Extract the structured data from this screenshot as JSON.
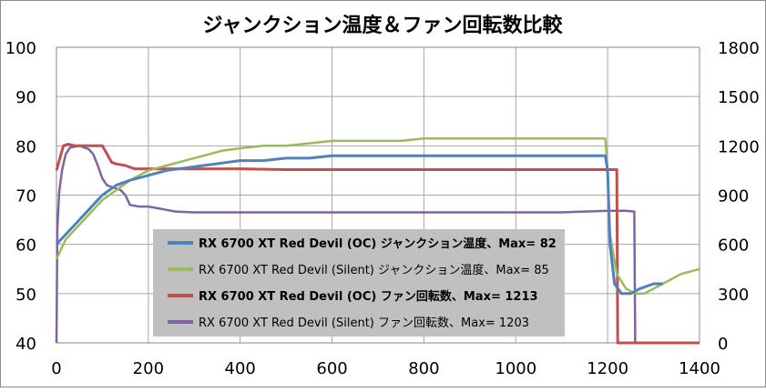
{
  "chart_data": {
    "type": "line",
    "title": "ジャンクション温度＆ファン回転数比較",
    "x_ticks": [
      "0",
      "200",
      "400",
      "600",
      "800",
      "1000",
      "1200",
      "1400"
    ],
    "y_left_ticks": [
      "40",
      "50",
      "60",
      "70",
      "80",
      "90",
      "100"
    ],
    "y_right_ticks": [
      "0",
      "300",
      "600",
      "900",
      "1200",
      "1500",
      "1800"
    ],
    "xlim": [
      0,
      1400
    ],
    "ylim_left": [
      40,
      100
    ],
    "ylim_right": [
      0,
      1800
    ],
    "grid": true,
    "legend_position": "lower-left (inside plot)",
    "series": [
      {
        "name": "RX 6700 XT Red Devil (OC) ジャンクション温度、Max= 82",
        "axis": "left",
        "color": "#4f81bd",
        "bold": true,
        "points": [
          [
            0,
            60
          ],
          [
            10,
            61
          ],
          [
            20,
            62
          ],
          [
            40,
            64
          ],
          [
            60,
            66
          ],
          [
            80,
            68
          ],
          [
            100,
            70
          ],
          [
            130,
            72
          ],
          [
            160,
            73
          ],
          [
            200,
            74
          ],
          [
            240,
            75
          ],
          [
            280,
            75.5
          ],
          [
            320,
            76
          ],
          [
            360,
            76.5
          ],
          [
            400,
            77
          ],
          [
            450,
            77
          ],
          [
            500,
            77.5
          ],
          [
            550,
            77.5
          ],
          [
            600,
            78
          ],
          [
            650,
            78
          ],
          [
            700,
            78
          ],
          [
            750,
            78
          ],
          [
            800,
            78
          ],
          [
            850,
            78
          ],
          [
            900,
            78
          ],
          [
            950,
            78
          ],
          [
            1000,
            78
          ],
          [
            1050,
            78
          ],
          [
            1100,
            78
          ],
          [
            1150,
            78
          ],
          [
            1195,
            78
          ],
          [
            1200,
            75
          ],
          [
            1205,
            60
          ],
          [
            1215,
            52
          ],
          [
            1230,
            50
          ],
          [
            1250,
            50
          ],
          [
            1270,
            51
          ],
          [
            1300,
            52
          ],
          [
            1320,
            52
          ]
        ]
      },
      {
        "name": "RX 6700 XT Red Devil (Silent) ジャンクション温度、Max= 85",
        "axis": "left",
        "color": "#9bbb59",
        "bold": false,
        "points": [
          [
            0,
            57
          ],
          [
            10,
            59
          ],
          [
            20,
            61
          ],
          [
            40,
            63
          ],
          [
            60,
            65
          ],
          [
            80,
            67
          ],
          [
            100,
            69
          ],
          [
            130,
            71
          ],
          [
            160,
            73
          ],
          [
            200,
            75
          ],
          [
            240,
            76
          ],
          [
            280,
            77
          ],
          [
            320,
            78
          ],
          [
            360,
            79
          ],
          [
            400,
            79.5
          ],
          [
            450,
            80
          ],
          [
            500,
            80
          ],
          [
            550,
            80.5
          ],
          [
            600,
            81
          ],
          [
            650,
            81
          ],
          [
            700,
            81
          ],
          [
            750,
            81
          ],
          [
            800,
            81.5
          ],
          [
            850,
            81.5
          ],
          [
            900,
            81.5
          ],
          [
            950,
            81.5
          ],
          [
            1000,
            81.5
          ],
          [
            1050,
            81.5
          ],
          [
            1100,
            81.5
          ],
          [
            1150,
            81.5
          ],
          [
            1195,
            81.5
          ],
          [
            1200,
            75
          ],
          [
            1205,
            62
          ],
          [
            1220,
            54
          ],
          [
            1240,
            51
          ],
          [
            1260,
            50
          ],
          [
            1280,
            50
          ],
          [
            1300,
            51
          ],
          [
            1320,
            52
          ],
          [
            1340,
            53
          ],
          [
            1360,
            54
          ],
          [
            1380,
            54.5
          ],
          [
            1400,
            55
          ]
        ]
      },
      {
        "name": "RX 6700 XT Red Devil (OC) ファン回転数、Max= 1213",
        "axis": "right",
        "color": "#c0504d",
        "bold": true,
        "points": [
          [
            0,
            1050
          ],
          [
            5,
            1100
          ],
          [
            15,
            1200
          ],
          [
            25,
            1210
          ],
          [
            40,
            1200
          ],
          [
            60,
            1200
          ],
          [
            80,
            1200
          ],
          [
            100,
            1200
          ],
          [
            110,
            1150
          ],
          [
            120,
            1100
          ],
          [
            130,
            1090
          ],
          [
            150,
            1080
          ],
          [
            170,
            1060
          ],
          [
            200,
            1060
          ],
          [
            250,
            1060
          ],
          [
            300,
            1060
          ],
          [
            400,
            1060
          ],
          [
            500,
            1055
          ],
          [
            600,
            1055
          ],
          [
            700,
            1055
          ],
          [
            800,
            1055
          ],
          [
            900,
            1055
          ],
          [
            1000,
            1055
          ],
          [
            1100,
            1055
          ],
          [
            1150,
            1055
          ],
          [
            1200,
            1055
          ],
          [
            1220,
            1055
          ],
          [
            1222,
            0
          ],
          [
            1400,
            0
          ]
        ]
      },
      {
        "name": "RX 6700 XT Red Devil (Silent) ファン回転数、Max= 1203",
        "axis": "right",
        "color": "#8064a2",
        "bold": false,
        "points": [
          [
            0,
            0
          ],
          [
            2,
            700
          ],
          [
            6,
            920
          ],
          [
            12,
            1050
          ],
          [
            20,
            1150
          ],
          [
            30,
            1190
          ],
          [
            50,
            1200
          ],
          [
            70,
            1180
          ],
          [
            80,
            1150
          ],
          [
            90,
            1080
          ],
          [
            100,
            1000
          ],
          [
            110,
            960
          ],
          [
            120,
            950
          ],
          [
            140,
            930
          ],
          [
            150,
            900
          ],
          [
            160,
            840
          ],
          [
            180,
            830
          ],
          [
            200,
            830
          ],
          [
            220,
            820
          ],
          [
            240,
            810
          ],
          [
            260,
            800
          ],
          [
            300,
            795
          ],
          [
            400,
            795
          ],
          [
            500,
            795
          ],
          [
            600,
            795
          ],
          [
            700,
            795
          ],
          [
            800,
            795
          ],
          [
            900,
            795
          ],
          [
            1000,
            795
          ],
          [
            1100,
            795
          ],
          [
            1150,
            800
          ],
          [
            1200,
            805
          ],
          [
            1240,
            805
          ],
          [
            1258,
            800
          ],
          [
            1260,
            0
          ],
          [
            1400,
            0
          ]
        ]
      }
    ]
  }
}
